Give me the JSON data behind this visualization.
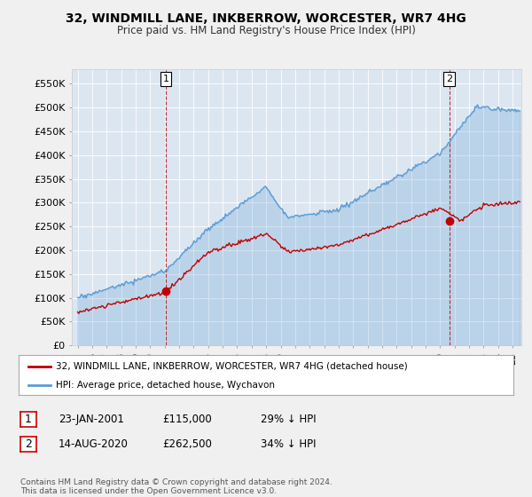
{
  "title": "32, WINDMILL LANE, INKBERROW, WORCESTER, WR7 4HG",
  "subtitle": "Price paid vs. HM Land Registry's House Price Index (HPI)",
  "hpi_label": "HPI: Average price, detached house, Wychavon",
  "price_label": "32, WINDMILL LANE, INKBERROW, WORCESTER, WR7 4HG (detached house)",
  "hpi_color": "#5b9bd5",
  "hpi_fill": "#ddeeff",
  "price_color": "#c00000",
  "sale1_date": "23-JAN-2001",
  "sale1_price": 115000,
  "sale1_pct": "29% ↓ HPI",
  "sale2_date": "14-AUG-2020",
  "sale2_price": 262500,
  "sale2_pct": "34% ↓ HPI",
  "footer": "Contains HM Land Registry data © Crown copyright and database right 2024.\nThis data is licensed under the Open Government Licence v3.0.",
  "yticks": [
    0,
    50000,
    100000,
    150000,
    200000,
    250000,
    300000,
    350000,
    400000,
    450000,
    500000,
    550000
  ],
  "background_color": "#f0f0f0",
  "plot_bg_color": "#dce6f1"
}
